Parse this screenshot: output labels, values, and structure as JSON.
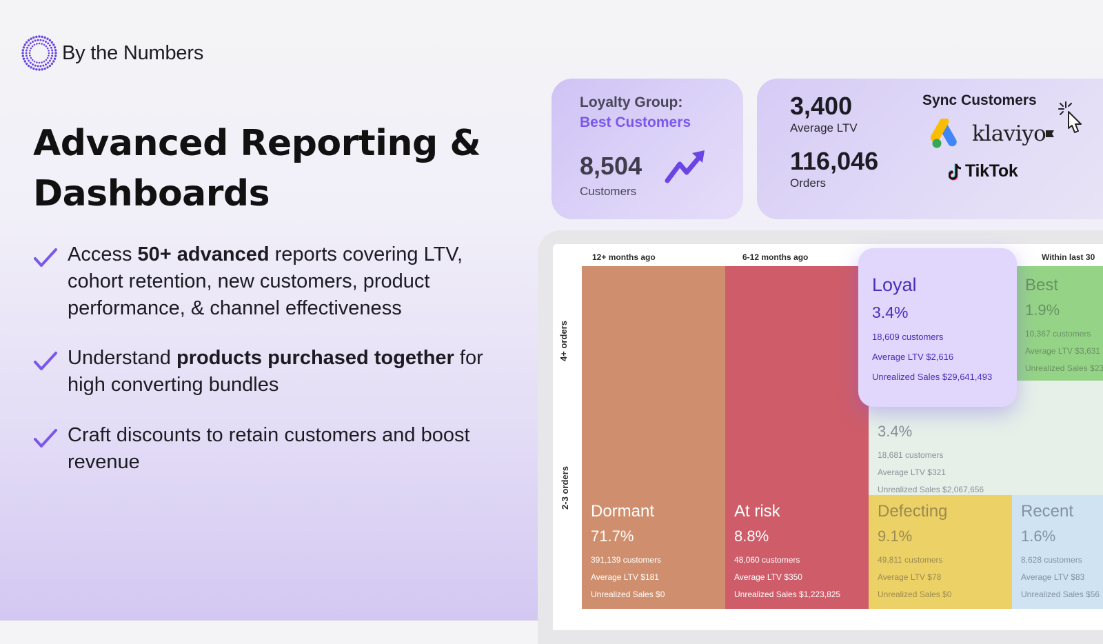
{
  "brand": {
    "name": "By the Numbers"
  },
  "headline": {
    "line1": "Advanced Reporting &",
    "line2": "Dashboards"
  },
  "bullets": [
    {
      "pre": "Access ",
      "bold": "50+ advanced",
      "post": " reports covering LTV, cohort retention, new customers, product performance, & channel effectiveness"
    },
    {
      "pre": "Understand ",
      "bold": "products purchased together",
      "post": " for high converting bundles"
    },
    {
      "pre": "",
      "bold": "",
      "post": "Craft discounts to retain customers and boost revenue"
    }
  ],
  "loyalty_card": {
    "title": "Loyalty Group:",
    "group": "Best Customers",
    "count": "8,504",
    "count_label": "Customers",
    "icon": "trend-up-icon"
  },
  "stats_card": {
    "ltv_value": "3,400",
    "ltv_label": "Average LTV",
    "orders_value": "116,046",
    "orders_label": "Orders",
    "sync_title": "Sync Customers",
    "integrations": [
      "klaviyo",
      "TikTok"
    ],
    "icons": [
      "google-ads-icon",
      "tiktok-icon",
      "pointer-click-icon"
    ]
  },
  "dashboard": {
    "columns": [
      "12+ months ago",
      "6-12 months ago",
      "Within last 30"
    ],
    "rows": [
      "4+ orders",
      "2-3 orders"
    ],
    "segments": {
      "dormant": {
        "name": "Dormant",
        "pct": "71.7%",
        "customers": "391,139 customers",
        "ltv": "Average LTV $181",
        "unrealized": "Unrealized Sales $0"
      },
      "at_risk": {
        "name": "At risk",
        "pct": "8.8%",
        "customers": "48,060 customers",
        "ltv": "Average LTV $350",
        "unrealized": "Unrealized Sales $1,223,825"
      },
      "defecting": {
        "name": "Defecting",
        "pct": "9.1%",
        "customers": "49,811 customers",
        "ltv": "Average LTV $78",
        "unrealized": "Unrealized Sales $0"
      },
      "recent": {
        "name": "Recent",
        "pct": "1.6%",
        "customers": "8,628 customers",
        "ltv": "Average LTV $83",
        "unrealized": "Unrealized Sales $56"
      },
      "best": {
        "name": "Best",
        "pct": "1.9%",
        "customers": "10,367 customers",
        "ltv": "Average LTV $3,631",
        "unrealized": "Unrealized Sales $23,"
      },
      "potential": {
        "pct": "3.4%",
        "customers": "18,681 customers",
        "ltv": "Average LTV $321",
        "unrealized": "Unrealized Sales $2,067,656"
      },
      "loyal": {
        "name": "Loyal",
        "pct": "3.4%",
        "customers": "18,609 customers",
        "ltv": "Average LTV $2,616",
        "unrealized": "Unrealized Sales $29,641,493"
      }
    },
    "colors": {
      "dormant": "#cf8f6e",
      "at_risk": "#cf5d69",
      "defecting": "#ecd167",
      "recent": "#cfe3f3",
      "best": "#95d487",
      "potential": "#e6f0e8",
      "loyal": "#e1d6fb"
    }
  }
}
